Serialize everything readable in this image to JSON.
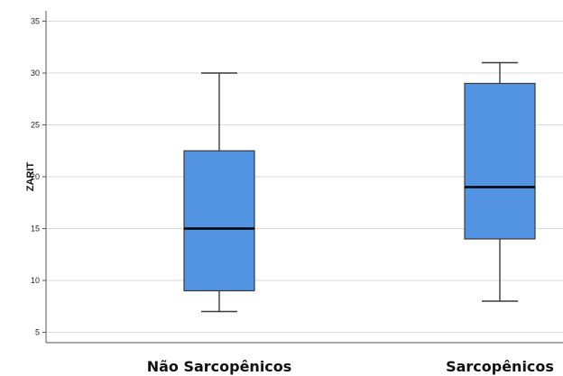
{
  "chart_data": {
    "type": "boxplot",
    "title": "",
    "xlabel": "",
    "ylabel": "ZARIT",
    "ylim": [
      4,
      36
    ],
    "yticks": [
      5,
      10,
      15,
      20,
      25,
      30,
      35
    ],
    "grid": "horizontal",
    "categories": [
      "Não Sarcopênicos",
      "Sarcopênicos"
    ],
    "boxes": [
      {
        "category": "Não Sarcopênicos",
        "min": 7,
        "q1": 9,
        "median": 15,
        "q3": 22.5,
        "max": 30
      },
      {
        "category": "Sarcopênicos",
        "min": 8,
        "q1": 14,
        "median": 19,
        "q3": 29,
        "max": 31
      }
    ],
    "colors": {
      "box_fill": "#5294e2",
      "box_stroke": "#3a3a3a",
      "median": "#000000",
      "grid": "#d9d9d9",
      "axis": "#555555"
    }
  }
}
